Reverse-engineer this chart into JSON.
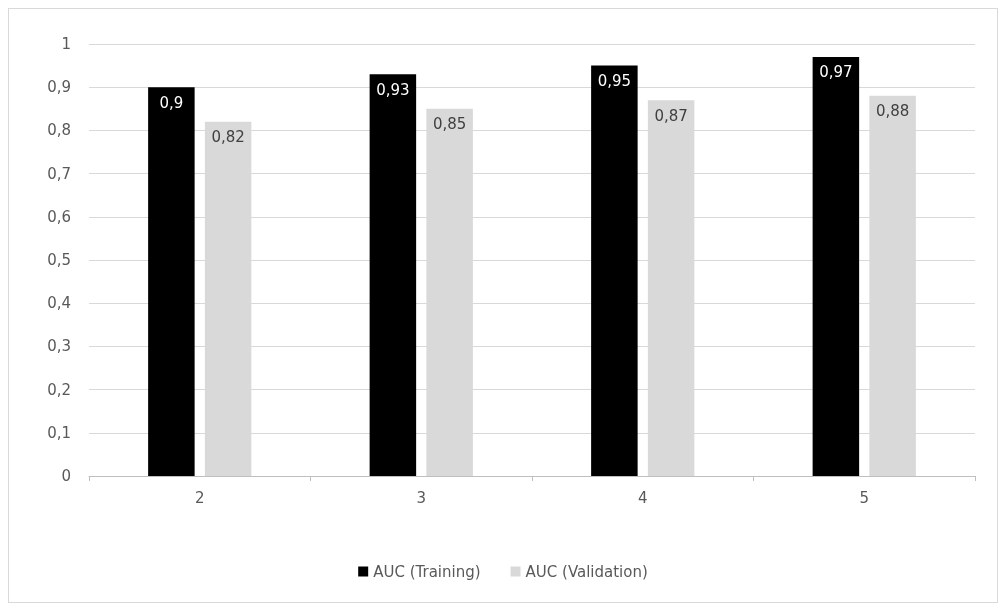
{
  "chart_data": {
    "type": "bar",
    "categories": [
      "2",
      "3",
      "4",
      "5"
    ],
    "series": [
      {
        "name": "AUC (Training)",
        "color": "#000000",
        "values": [
          0.9,
          0.93,
          0.95,
          0.97
        ],
        "value_labels": [
          "0,9",
          "0,93",
          "0,95",
          "0,97"
        ]
      },
      {
        "name": "AUC (Validation)",
        "color": "#d9d9d9",
        "values": [
          0.82,
          0.85,
          0.87,
          0.88
        ],
        "value_labels": [
          "0,82",
          "0,85",
          "0,87",
          "0,88"
        ]
      }
    ],
    "ylim": [
      0,
      1
    ],
    "yticks": [
      {
        "value": 0,
        "label": "0"
      },
      {
        "value": 0.1,
        "label": "0,1"
      },
      {
        "value": 0.2,
        "label": "0,2"
      },
      {
        "value": 0.3,
        "label": "0,3"
      },
      {
        "value": 0.4,
        "label": "0,4"
      },
      {
        "value": 0.5,
        "label": "0,5"
      },
      {
        "value": 0.6,
        "label": "0,6"
      },
      {
        "value": 0.7,
        "label": "0,7"
      },
      {
        "value": 0.8,
        "label": "0,8"
      },
      {
        "value": 0.9,
        "label": "0,9"
      },
      {
        "value": 1,
        "label": "1"
      }
    ],
    "grid": "y",
    "legend": "bottom"
  }
}
